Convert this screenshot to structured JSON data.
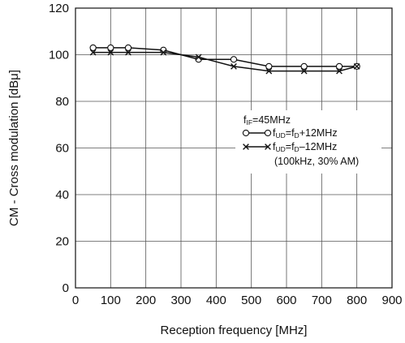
{
  "chart_data": {
    "type": "line",
    "title": "",
    "xlabel": "Reception frequency [MHz]",
    "ylabel": "CM - Cross modulation [dBμ]",
    "xlim": [
      0,
      900
    ],
    "ylim": [
      0,
      120
    ],
    "xticks": [
      0,
      100,
      200,
      300,
      400,
      500,
      600,
      700,
      800,
      900
    ],
    "yticks": [
      0,
      20,
      40,
      60,
      80,
      100,
      120
    ],
    "grid": true,
    "legend_position": "right-middle",
    "legend_header": {
      "main": "f",
      "sub": "IF",
      "rest": "=45MHz"
    },
    "series": [
      {
        "name": "fUD=fD+12MHz",
        "legend": {
          "main1": "f",
          "sub1": "UD",
          "mid": "=f",
          "sub2": "D",
          "rest": "+12MHz"
        },
        "marker": "circle",
        "color": "#111111",
        "x": [
          50,
          100,
          150,
          250,
          350,
          450,
          550,
          650,
          750,
          800
        ],
        "y": [
          103,
          103,
          103,
          102,
          98,
          98,
          95,
          95,
          95,
          95
        ]
      },
      {
        "name": "fUD=fD–12MHz",
        "legend": {
          "main1": "f",
          "sub1": "UD",
          "mid": "=f",
          "sub2": "D",
          "rest": "–12MHz"
        },
        "marker": "x",
        "color": "#111111",
        "x": [
          50,
          100,
          150,
          250,
          350,
          450,
          550,
          650,
          750,
          800
        ],
        "y": [
          101,
          101,
          101,
          101,
          99,
          95,
          93,
          93,
          93,
          95
        ]
      }
    ],
    "annotation": "(100kHz, 30% AM)"
  }
}
